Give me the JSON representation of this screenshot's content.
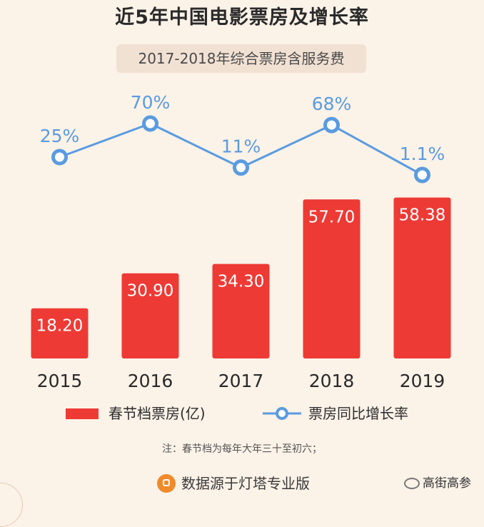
{
  "title": "近5年中国电影票房及增长率",
  "subtitle": "2017-2018年综合票房含服务费",
  "chart_data": {
    "type": "bar",
    "categories": [
      "2015",
      "2016",
      "2017",
      "2018",
      "2019"
    ],
    "series": [
      {
        "name": "春节档票房(亿)",
        "type": "bar",
        "values": [
          18.2,
          30.9,
          34.3,
          57.7,
          58.38
        ],
        "labels": [
          "18.20",
          "30.90",
          "34.30",
          "57.70",
          "58.38"
        ],
        "color": "#ee3a35"
      },
      {
        "name": "票房同比增长率",
        "type": "line",
        "values": [
          25,
          70,
          11,
          68,
          1.1
        ],
        "labels": [
          "25%",
          "70%",
          "11%",
          "68%",
          "1.1%"
        ],
        "color": "#5a9be0"
      }
    ],
    "legend_position": "bottom"
  },
  "note": "注：春节档为每年大年三十至初六；",
  "source": {
    "icon": "lighthouse-icon",
    "text": "数据源于灯塔专业版"
  },
  "watermark": {
    "icon": "wechat-icon",
    "text": "高街高参"
  }
}
